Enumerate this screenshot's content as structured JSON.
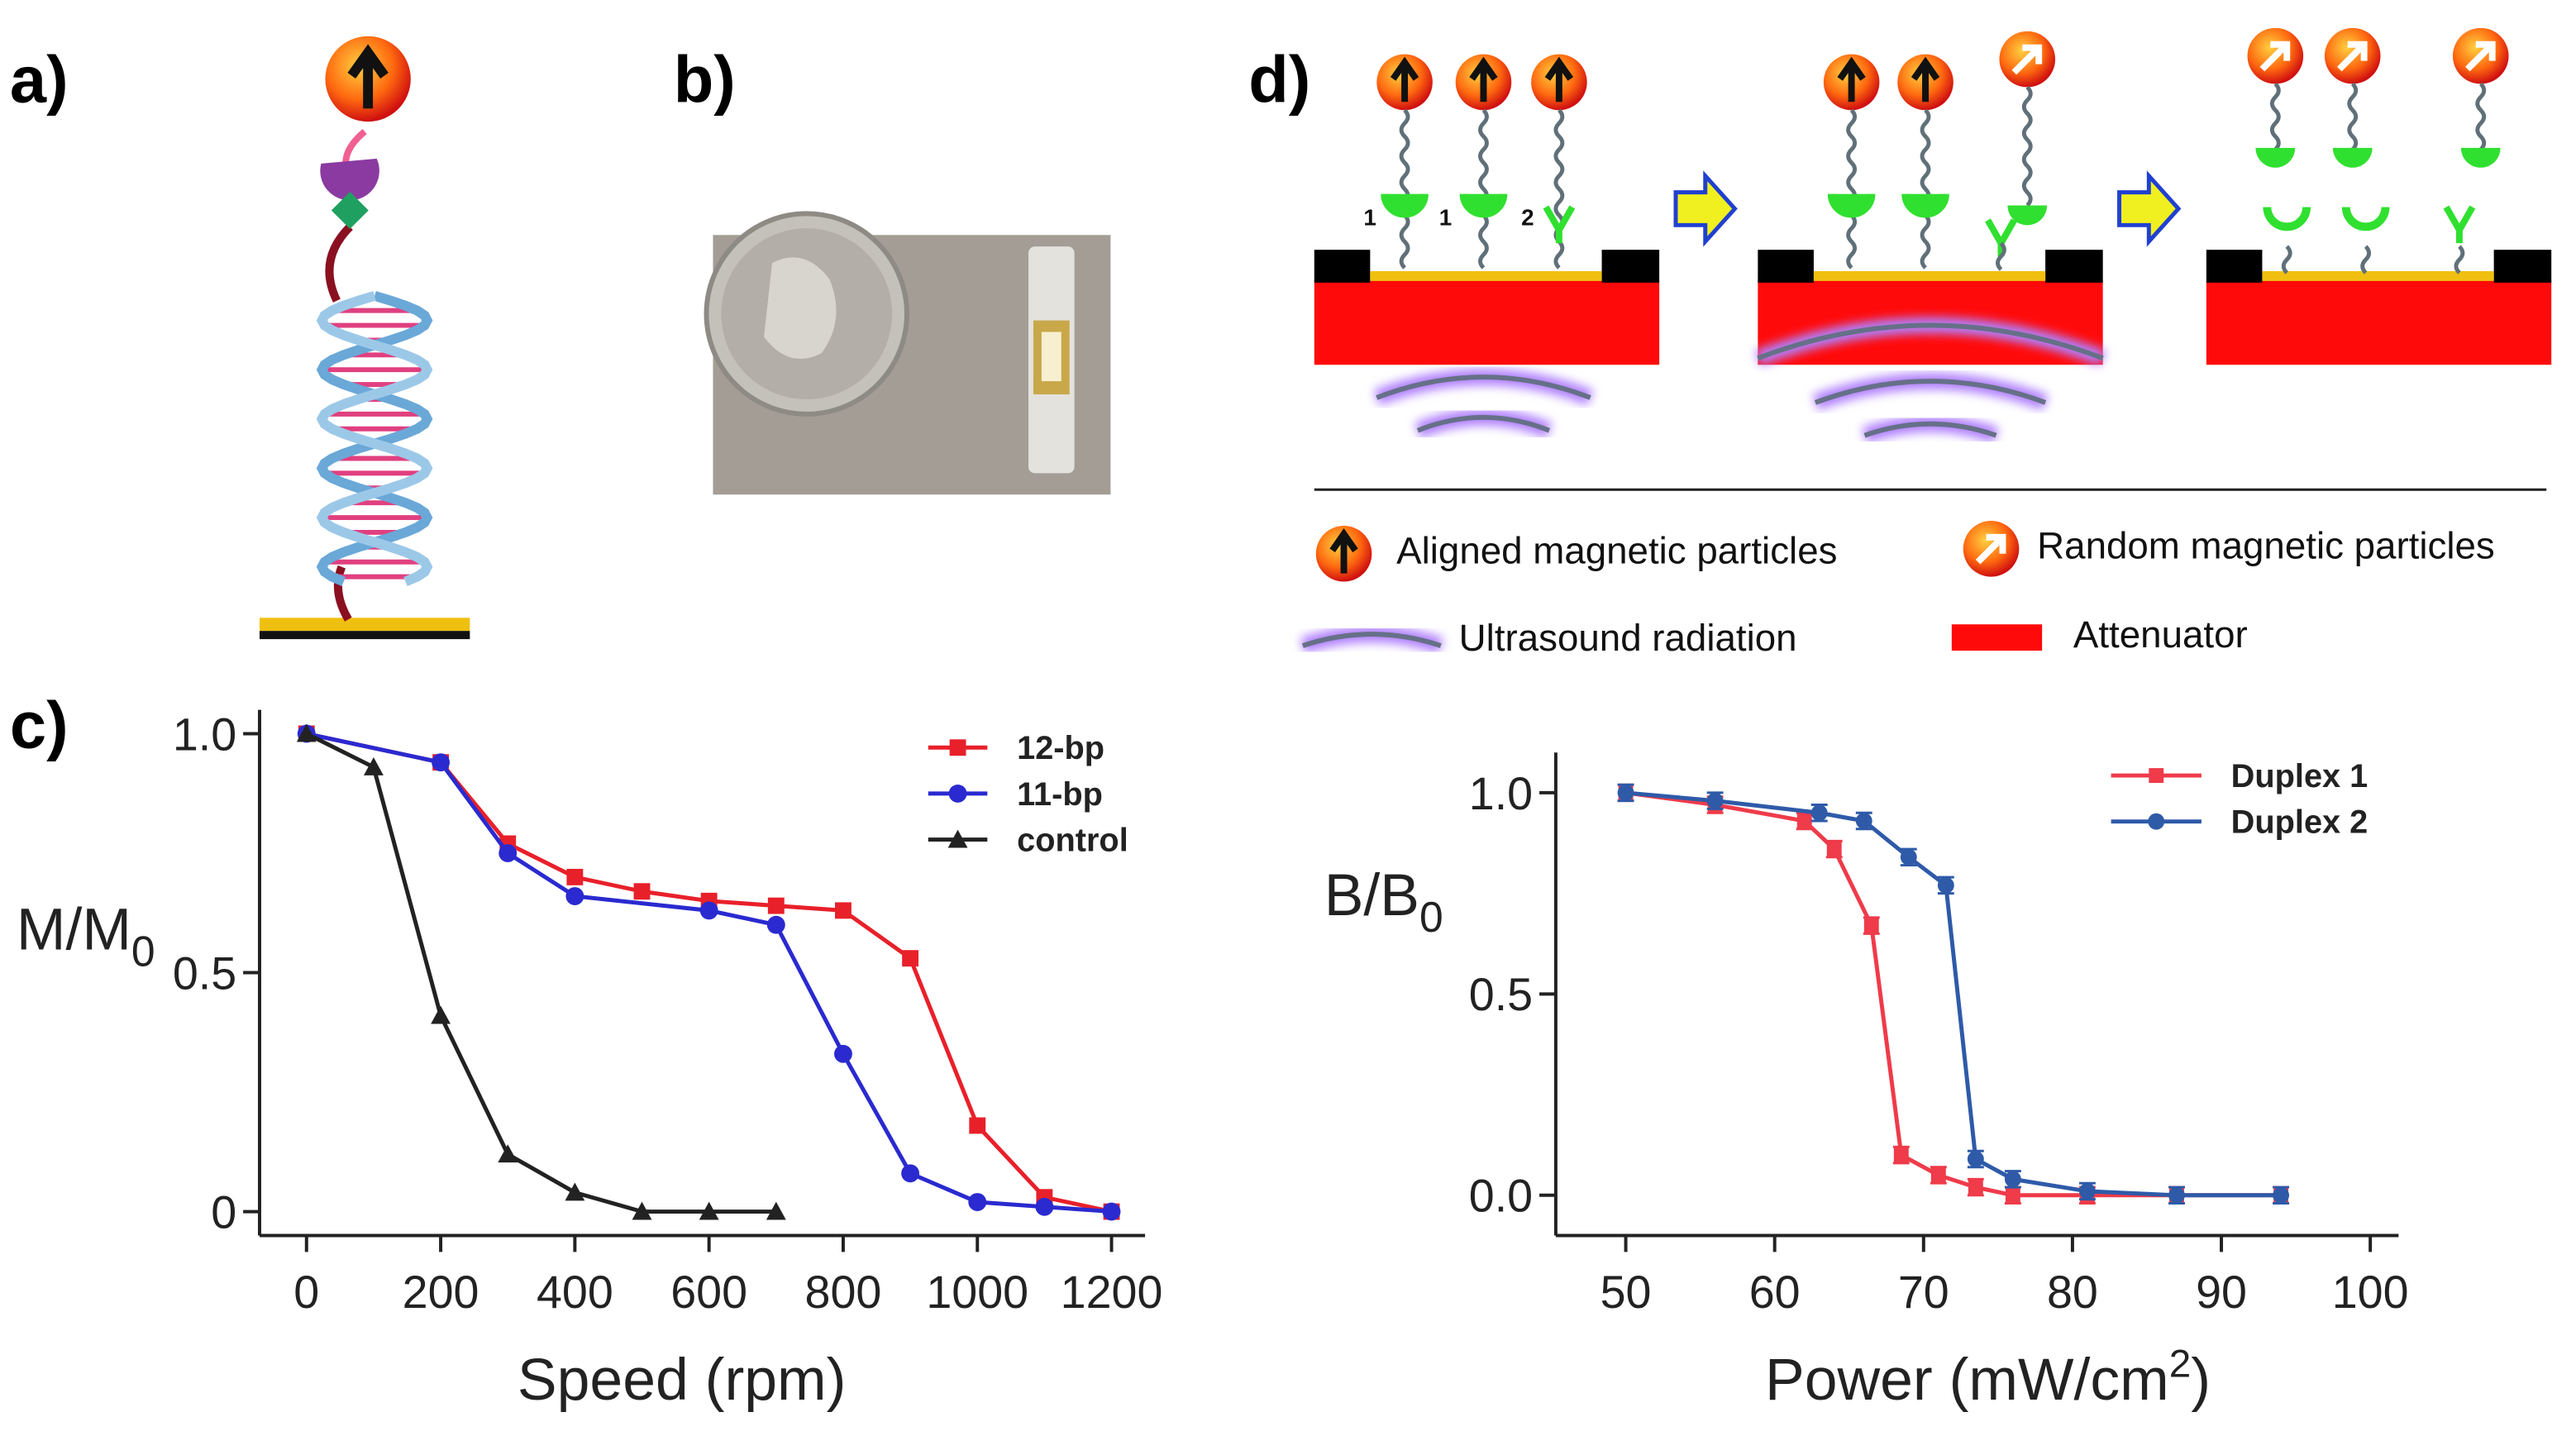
{
  "panels": {
    "a": "a)",
    "b": "b)",
    "c": "c)",
    "d": "d)"
  },
  "diagram": {
    "site_labels": [
      "1",
      "1",
      "2"
    ],
    "legend": [
      "Aligned magnetic particles",
      "Random magnetic particles",
      "Ultrasound radiation",
      "Attenuator"
    ]
  },
  "chart_data": [
    {
      "type": "line",
      "xlabel": "Speed (rpm)",
      "ylabel": {
        "text": "M/M",
        "sub": "0"
      },
      "xlim": [
        -70,
        1250
      ],
      "xticks": [
        0,
        200,
        400,
        600,
        800,
        1000,
        1200
      ],
      "ylim": [
        -0.05,
        1.05
      ],
      "yticks": [
        0,
        0.5,
        {
          "value": 1,
          "label": "1.0"
        }
      ],
      "series": [
        {
          "name": "12-bp",
          "color": "#e8202a",
          "marker": "square",
          "x": [
            0,
            200,
            300,
            400,
            500,
            600,
            700,
            800,
            900,
            1000,
            1100,
            1200
          ],
          "values": [
            1.0,
            0.94,
            0.77,
            0.7,
            0.67,
            0.65,
            0.64,
            0.63,
            0.53,
            0.18,
            0.03,
            0.0
          ]
        },
        {
          "name": "11-bp",
          "color": "#2a2ad0",
          "marker": "circle",
          "x": [
            0,
            200,
            300,
            400,
            600,
            700,
            800,
            900,
            1000,
            1100,
            1200
          ],
          "values": [
            1.0,
            0.94,
            0.75,
            0.66,
            0.63,
            0.6,
            0.33,
            0.08,
            0.02,
            0.01,
            0.0
          ]
        },
        {
          "name": "control",
          "color": "#222222",
          "marker": "triangle",
          "x": [
            0,
            100,
            200,
            300,
            400,
            500,
            600,
            700
          ],
          "values": [
            1.0,
            0.93,
            0.41,
            0.12,
            0.04,
            0.0,
            0.0,
            0.0
          ]
        }
      ]
    },
    {
      "type": "line",
      "xlabel": {
        "text": "Power (mW/cm",
        "sup": "2",
        "end": ")"
      },
      "ylabel": {
        "text": "B/B",
        "sub": "0"
      },
      "xlim": [
        45.3,
        101.9
      ],
      "xticks": [
        50,
        60,
        70,
        80,
        90,
        100
      ],
      "ylim": [
        -0.1,
        1.1
      ],
      "yticks": [
        {
          "value": 0,
          "label": "0.0"
        },
        0.5,
        {
          "value": 1,
          "label": "1.0"
        }
      ],
      "series": [
        {
          "name": "Duplex 1",
          "color": "#ef3b4a",
          "marker": "square",
          "x": [
            50,
            56,
            62,
            64,
            66.5,
            68.5,
            71,
            73.5,
            76,
            81,
            87,
            94
          ],
          "values": [
            1.0,
            0.97,
            0.93,
            0.86,
            0.67,
            0.1,
            0.05,
            0.02,
            0.0,
            0.0,
            0.0,
            0.0
          ],
          "errors": [
            0.02,
            0.02,
            0.02,
            0.02,
            0.02,
            0.02,
            0.02,
            0.02,
            0.02,
            0.02,
            0.02,
            0.02
          ]
        },
        {
          "name": "Duplex 2",
          "color": "#2e5aa8",
          "marker": "circle",
          "x": [
            50,
            56,
            63,
            66,
            69,
            71.5,
            73.5,
            76,
            81,
            87,
            94
          ],
          "values": [
            1.0,
            0.98,
            0.95,
            0.93,
            0.84,
            0.77,
            0.09,
            0.04,
            0.01,
            0.0,
            0.0
          ],
          "errors": [
            0.02,
            0.02,
            0.02,
            0.02,
            0.02,
            0.02,
            0.02,
            0.02,
            0.02,
            0.02,
            0.02
          ]
        }
      ]
    }
  ]
}
